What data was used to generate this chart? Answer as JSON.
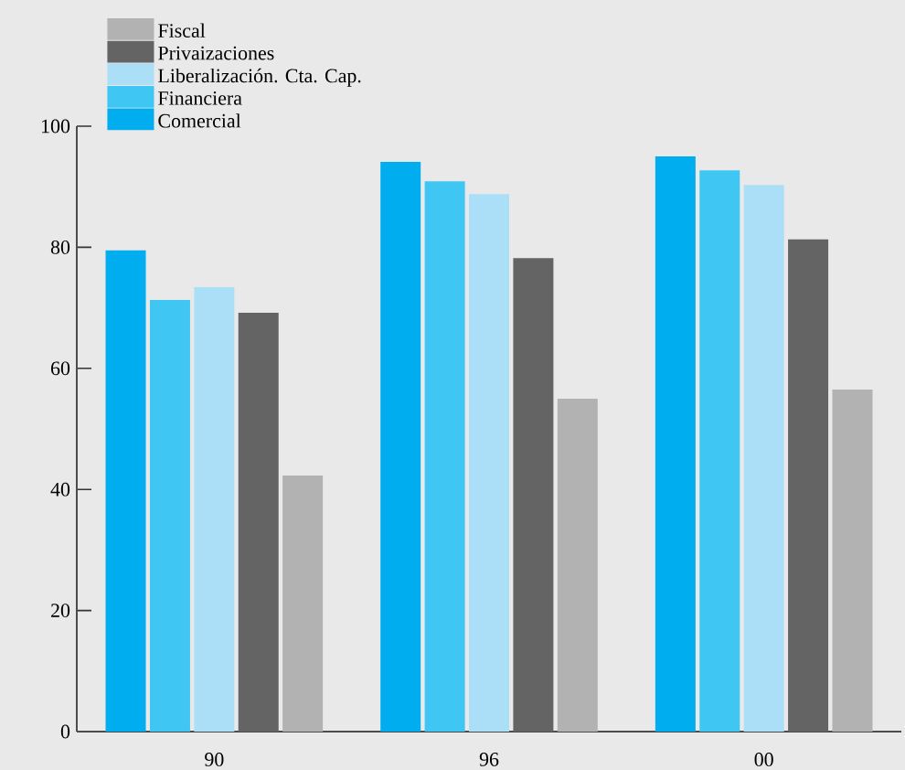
{
  "chart_data": {
    "type": "bar",
    "categories": [
      "90",
      "96",
      "00"
    ],
    "series": [
      {
        "name": "Comercial",
        "color": "#00aeef",
        "values": [
          79.5,
          94.1,
          95.0
        ]
      },
      {
        "name": "Financiera",
        "color": "#40c6f2",
        "values": [
          71.3,
          90.9,
          92.7
        ]
      },
      {
        "name": "Liberalización. Cta. Cap.",
        "color": "#aadff7",
        "values": [
          73.4,
          88.8,
          90.3
        ]
      },
      {
        "name": "Privaizaciones",
        "color": "#646464",
        "values": [
          69.2,
          78.2,
          81.3
        ]
      },
      {
        "name": "Fiscal",
        "color": "#b2b2b2",
        "values": [
          42.3,
          55.0,
          56.5
        ]
      }
    ],
    "ylim": [
      0,
      100
    ],
    "yticks": [
      0,
      20,
      40,
      60,
      80,
      100
    ],
    "grid": false,
    "legend": "top left"
  }
}
